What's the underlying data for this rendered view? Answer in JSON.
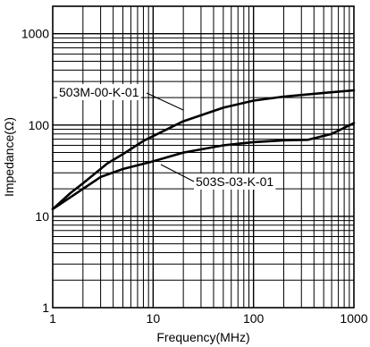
{
  "chart_data": {
    "type": "line",
    "xlabel": "Frequency(MHz)",
    "ylabel": "Impedance(Ω)",
    "x_scale": "log",
    "y_scale": "log",
    "xlim": [
      1,
      1000
    ],
    "ylim": [
      1,
      2000
    ],
    "grid": true,
    "x_ticks": [
      {
        "value": 1,
        "label": "1"
      },
      {
        "value": 10,
        "label": "10"
      },
      {
        "value": 100,
        "label": "100"
      },
      {
        "value": 1000,
        "label": "1000"
      }
    ],
    "y_ticks": [
      {
        "value": 1,
        "label": "1"
      },
      {
        "value": 10,
        "label": "10"
      },
      {
        "value": 100,
        "label": "100"
      },
      {
        "value": 1000,
        "label": "1000"
      }
    ],
    "series": [
      {
        "name": "503M-00-K-01",
        "x": [
          1,
          1.5,
          2,
          3.5,
          5,
          8,
          20,
          50,
          100,
          200,
          500,
          1000
        ],
        "y": [
          12,
          18,
          23,
          38,
          48,
          67,
          110,
          155,
          185,
          205,
          225,
          240
        ]
      },
      {
        "name": "503S-03-K-01",
        "x": [
          1,
          2,
          3,
          5,
          10,
          20,
          50,
          100,
          200,
          350,
          600,
          1000
        ],
        "y": [
          12,
          20,
          27,
          33,
          40,
          50,
          60,
          65,
          68,
          69,
          80,
          105
        ]
      }
    ]
  }
}
